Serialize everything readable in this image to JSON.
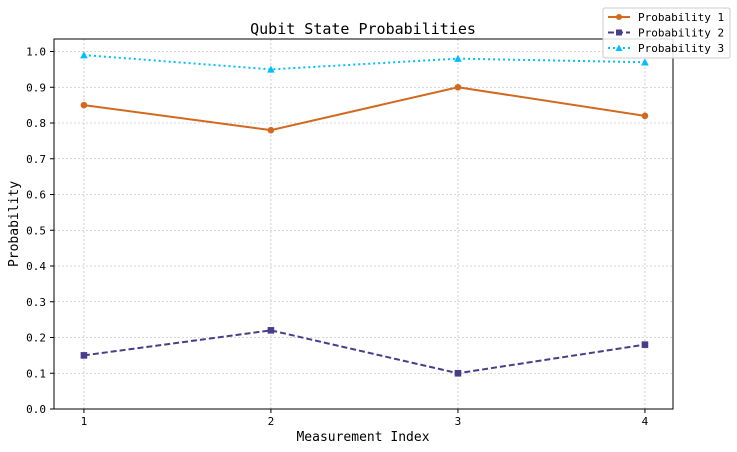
{
  "chart_data": {
    "type": "line",
    "title": "Qubit State Probabilities",
    "xlabel": "Measurement Index",
    "ylabel": "Probability",
    "x": [
      1,
      2,
      3,
      4
    ],
    "xticks": [
      "1",
      "2",
      "3",
      "4"
    ],
    "yticks": [
      "0.0",
      "0.1",
      "0.2",
      "0.3",
      "0.4",
      "0.5",
      "0.6",
      "0.7",
      "0.8",
      "0.9",
      "1.0"
    ],
    "xlim": [
      0.84,
      4.15
    ],
    "ylim": [
      0.0,
      1.035
    ],
    "grid": true,
    "legend_position": "top-right",
    "series": [
      {
        "name": "Probability 1",
        "values": [
          0.85,
          0.78,
          0.9,
          0.82
        ],
        "color": "#d2691e",
        "line_style": "solid",
        "marker": "circle"
      },
      {
        "name": "Probability 2",
        "values": [
          0.15,
          0.22,
          0.1,
          0.18
        ],
        "color": "#483d8b",
        "line_style": "dashed",
        "marker": "square"
      },
      {
        "name": "Probability 3",
        "values": [
          0.99,
          0.95,
          0.98,
          0.97
        ],
        "color": "#00bfff",
        "line_style": "dotted",
        "marker": "triangle"
      }
    ]
  }
}
